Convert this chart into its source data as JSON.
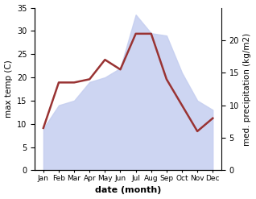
{
  "months": [
    "Jan",
    "Feb",
    "Mar",
    "Apr",
    "May",
    "Jun",
    "Jul",
    "Aug",
    "Sep",
    "Oct",
    "Nov",
    "Dec"
  ],
  "temp": [
    9.0,
    14.0,
    15.0,
    19.0,
    20.0,
    22.0,
    33.5,
    29.5,
    29.0,
    21.0,
    15.0,
    13.0
  ],
  "precip": [
    6.5,
    13.5,
    13.5,
    14.0,
    17.0,
    15.5,
    21.0,
    21.0,
    14.0,
    10.0,
    6.0,
    8.0
  ],
  "precip_color": "#993333",
  "temp_fill_color": "#c5cef0",
  "temp_fill_alpha": 0.85,
  "xlabel": "date (month)",
  "ylabel_left": "max temp (C)",
  "ylabel_right": "med. precipitation (kg/m2)",
  "ylim_left": [
    0,
    35
  ],
  "ylim_right": [
    0,
    25
  ],
  "yticks_left": [
    0,
    5,
    10,
    15,
    20,
    25,
    30,
    35
  ],
  "yticks_right": [
    0,
    5,
    10,
    15,
    20
  ],
  "bg_color": "#ffffff"
}
